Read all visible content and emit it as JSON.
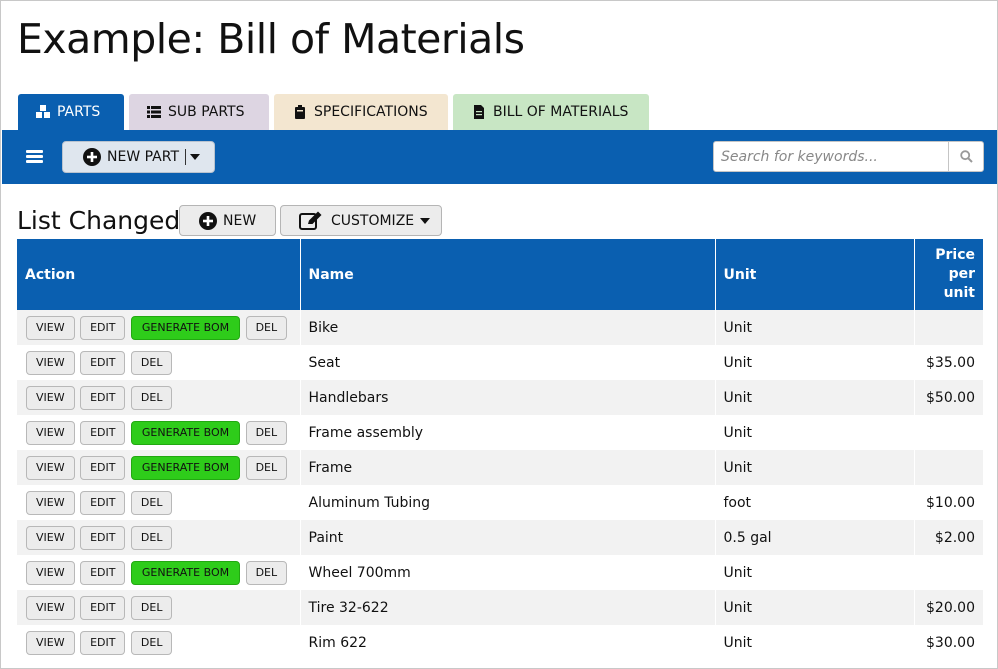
{
  "page": {
    "title": "Example: Bill of Materials"
  },
  "tabs": [
    {
      "label": "PARTS",
      "icon": "cubes-icon"
    },
    {
      "label": "SUB PARTS",
      "icon": "list-icon"
    },
    {
      "label": "SPECIFICATIONS",
      "icon": "clipboard-icon"
    },
    {
      "label": "BILL OF MATERIALS",
      "icon": "document-icon"
    }
  ],
  "toolbar": {
    "new_part_label": "NEW PART",
    "search_placeholder": "Search for keywords..."
  },
  "list": {
    "title": "List Changed",
    "new_label": "NEW",
    "customize_label": "CUSTOMIZE"
  },
  "table": {
    "headers": {
      "action": "Action",
      "name": "Name",
      "unit": "Unit",
      "price": "Price per unit"
    },
    "buttons": {
      "view": "VIEW",
      "edit": "EDIT",
      "generate": "GENERATE BOM",
      "del": "DEL"
    },
    "rows": [
      {
        "name": "Bike",
        "unit": "Unit",
        "price": "",
        "bom": true
      },
      {
        "name": "Seat",
        "unit": "Unit",
        "price": "$35.00",
        "bom": false
      },
      {
        "name": "Handlebars",
        "unit": "Unit",
        "price": "$50.00",
        "bom": false
      },
      {
        "name": "Frame assembly",
        "unit": "Unit",
        "price": "",
        "bom": true
      },
      {
        "name": "Frame",
        "unit": "Unit",
        "price": "",
        "bom": true
      },
      {
        "name": "Aluminum Tubing",
        "unit": "foot",
        "price": "$10.00",
        "bom": false
      },
      {
        "name": "Paint",
        "unit": "0.5 gal",
        "price": "$2.00",
        "bom": false
      },
      {
        "name": "Wheel 700mm",
        "unit": "Unit",
        "price": "",
        "bom": true
      },
      {
        "name": "Tire 32-622",
        "unit": "Unit",
        "price": "$20.00",
        "bom": false
      },
      {
        "name": "Rim 622",
        "unit": "Unit",
        "price": "$30.00",
        "bom": false
      }
    ]
  },
  "colors": {
    "primary": "#0a5fb0",
    "generate": "#2ecc1a"
  }
}
